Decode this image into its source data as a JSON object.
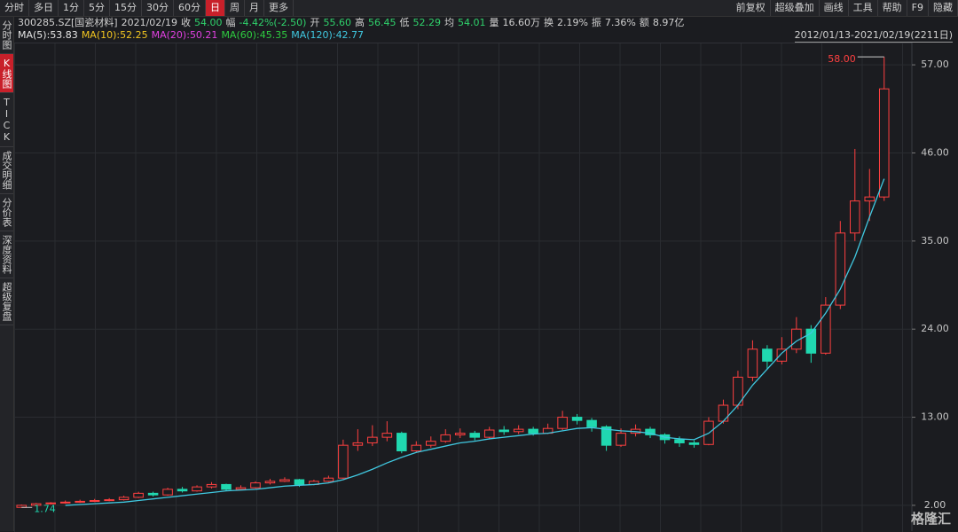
{
  "toolbar": {
    "left_tabs": [
      "分时",
      "多日",
      "1分",
      "5分",
      "15分",
      "30分",
      "60分",
      "日",
      "周",
      "月",
      "更多"
    ],
    "active_tab": 7,
    "right_tabs": [
      "前复权",
      "超级叠加",
      "画线",
      "工具",
      "帮助",
      "F9",
      "隐藏"
    ]
  },
  "sidebar": {
    "items": [
      "分时图",
      "K线图",
      "TICK",
      "成交明细",
      "分价表",
      "深度资料",
      "超级复盘"
    ],
    "active_item": 1
  },
  "quote": {
    "code": "300285.SZ[国瓷材料]",
    "date": "2021/02/19",
    "fields": [
      {
        "label": "收",
        "value": "54.00",
        "color": "#2fd16b"
      },
      {
        "label": "幅",
        "value": "-4.42%(-2.50)",
        "color": "#2fd16b"
      },
      {
        "label": "开",
        "value": "55.60",
        "color": "#2fd16b"
      },
      {
        "label": "高",
        "value": "56.45",
        "color": "#2fd16b"
      },
      {
        "label": "低",
        "value": "52.29",
        "color": "#2fd16b"
      },
      {
        "label": "均",
        "value": "54.01",
        "color": "#2fd16b"
      },
      {
        "label": "量",
        "value": "16.60万",
        "color": "#d0d0d0"
      },
      {
        "label": "换",
        "value": "2.19%",
        "color": "#d0d0d0"
      },
      {
        "label": "振",
        "value": "7.36%",
        "color": "#d0d0d0"
      },
      {
        "label": "额",
        "value": "8.97亿",
        "color": "#d0d0d0"
      }
    ]
  },
  "moving_averages": [
    {
      "name": "MA(5):",
      "value": 53.83,
      "color": "#e6e6e6"
    },
    {
      "name": "MA(10):",
      "value": 52.25,
      "color": "#f0c420"
    },
    {
      "name": "MA(20):",
      "value": 50.21,
      "color": "#e040e0"
    },
    {
      "name": "MA(60):",
      "value": 45.35,
      "color": "#2ecc40"
    },
    {
      "name": "MA(120):",
      "value": 42.77,
      "color": "#40c8e0"
    }
  ],
  "watermark": "格隆汇",
  "chart_data": {
    "type": "candlestick",
    "range_label": "2012/01/13-2021/02/19(2211日)",
    "ylim": [
      -1.22,
      59.78
    ],
    "yticks": [
      {
        "value": 2,
        "label": "2.00"
      },
      {
        "value": 13,
        "label": "13.00"
      },
      {
        "value": 24,
        "label": "24.00"
      },
      {
        "value": 35,
        "label": "35.00"
      },
      {
        "value": 46,
        "label": "46.00"
      },
      {
        "value": 57,
        "label": "57.00"
      }
    ],
    "up_color": "#ff4040",
    "down_color": "#20d8b0",
    "max_label": "58.00",
    "min_label": "1.74",
    "candles": {
      "open": [
        1.74,
        2.0,
        2.2,
        2.3,
        2.4,
        2.5,
        2.6,
        2.7,
        3.0,
        3.5,
        3.3,
        4.0,
        3.8,
        4.3,
        4.6,
        4.0,
        4.2,
        4.8,
        5.0,
        5.2,
        4.6,
        5.0,
        5.4,
        9.5,
        9.8,
        10.5,
        11.0,
        8.8,
        9.5,
        10.0,
        10.8,
        11.0,
        10.5,
        11.4,
        11.2,
        11.5,
        11.0,
        11.6,
        13.0,
        12.6,
        11.8,
        9.5,
        11.0,
        11.5,
        10.8,
        10.2,
        9.8,
        9.6,
        12.5,
        14.5,
        18.0,
        21.5,
        20.0,
        21.5,
        24.0,
        21.0,
        27.0,
        36.0,
        40.0,
        40.5
      ],
      "high": [
        2.1,
        2.3,
        2.4,
        2.6,
        2.7,
        2.8,
        2.9,
        3.2,
        3.7,
        3.7,
        4.2,
        4.3,
        4.5,
        4.9,
        4.7,
        4.5,
        5.0,
        5.3,
        5.5,
        5.3,
        5.2,
        5.7,
        10.2,
        11.5,
        12.0,
        12.5,
        11.2,
        10.0,
        10.6,
        11.5,
        11.6,
        11.3,
        11.8,
        11.9,
        12.0,
        11.8,
        12.2,
        13.8,
        13.4,
        12.9,
        12.0,
        11.6,
        12.1,
        11.8,
        11.0,
        10.6,
        10.1,
        13.0,
        15.2,
        18.8,
        22.6,
        22.0,
        23.0,
        25.5,
        24.5,
        28.0,
        37.5,
        46.5,
        44.0,
        58.0
      ],
      "low": [
        1.74,
        1.9,
        2.1,
        2.2,
        2.3,
        2.4,
        2.5,
        2.6,
        2.9,
        3.1,
        3.2,
        3.6,
        3.7,
        4.1,
        3.8,
        3.9,
        4.1,
        4.6,
        4.9,
        4.3,
        4.5,
        4.9,
        5.3,
        8.8,
        9.4,
        10.0,
        8.5,
        8.6,
        9.2,
        9.8,
        10.4,
        10.1,
        10.3,
        10.8,
        10.9,
        10.7,
        10.9,
        11.4,
        12.1,
        11.2,
        8.8,
        9.3,
        10.6,
        10.4,
        9.7,
        9.3,
        9.2,
        9.5,
        12.2,
        14.0,
        17.5,
        19.0,
        19.6,
        21.0,
        19.8,
        20.8,
        26.5,
        35.0,
        37.5,
        40.0
      ],
      "close": [
        2.0,
        2.2,
        2.3,
        2.4,
        2.5,
        2.6,
        2.7,
        3.0,
        3.5,
        3.3,
        4.0,
        3.8,
        4.3,
        4.6,
        4.0,
        4.2,
        4.8,
        5.0,
        5.2,
        4.6,
        5.0,
        5.4,
        9.5,
        9.8,
        10.5,
        11.0,
        8.8,
        9.5,
        10.0,
        10.8,
        11.0,
        10.5,
        11.4,
        11.2,
        11.5,
        11.0,
        11.6,
        13.0,
        12.6,
        11.8,
        9.5,
        11.0,
        11.5,
        10.8,
        10.2,
        9.8,
        9.6,
        12.5,
        14.5,
        18.0,
        21.5,
        20.0,
        21.5,
        24.0,
        21.0,
        27.0,
        36.0,
        40.0,
        40.5,
        54.0
      ]
    },
    "lines": [
      {
        "color": "#40c8e0",
        "values": [
          null,
          null,
          null,
          2.0,
          2.1,
          2.2,
          2.3,
          2.4,
          2.6,
          2.8,
          3.0,
          3.2,
          3.4,
          3.6,
          3.8,
          3.9,
          4.0,
          4.2,
          4.4,
          4.5,
          4.6,
          4.8,
          5.2,
          5.8,
          6.5,
          7.3,
          8.0,
          8.6,
          9.0,
          9.4,
          9.8,
          10.0,
          10.3,
          10.5,
          10.7,
          10.9,
          11.0,
          11.3,
          11.6,
          11.7,
          11.5,
          11.3,
          11.2,
          11.0,
          10.5,
          10.3,
          10.2,
          11.0,
          12.5,
          14.5,
          17.0,
          19.0,
          21.0,
          22.5,
          23.5,
          26.0,
          29.0,
          33.0,
          38.0,
          42.77
        ]
      }
    ]
  }
}
